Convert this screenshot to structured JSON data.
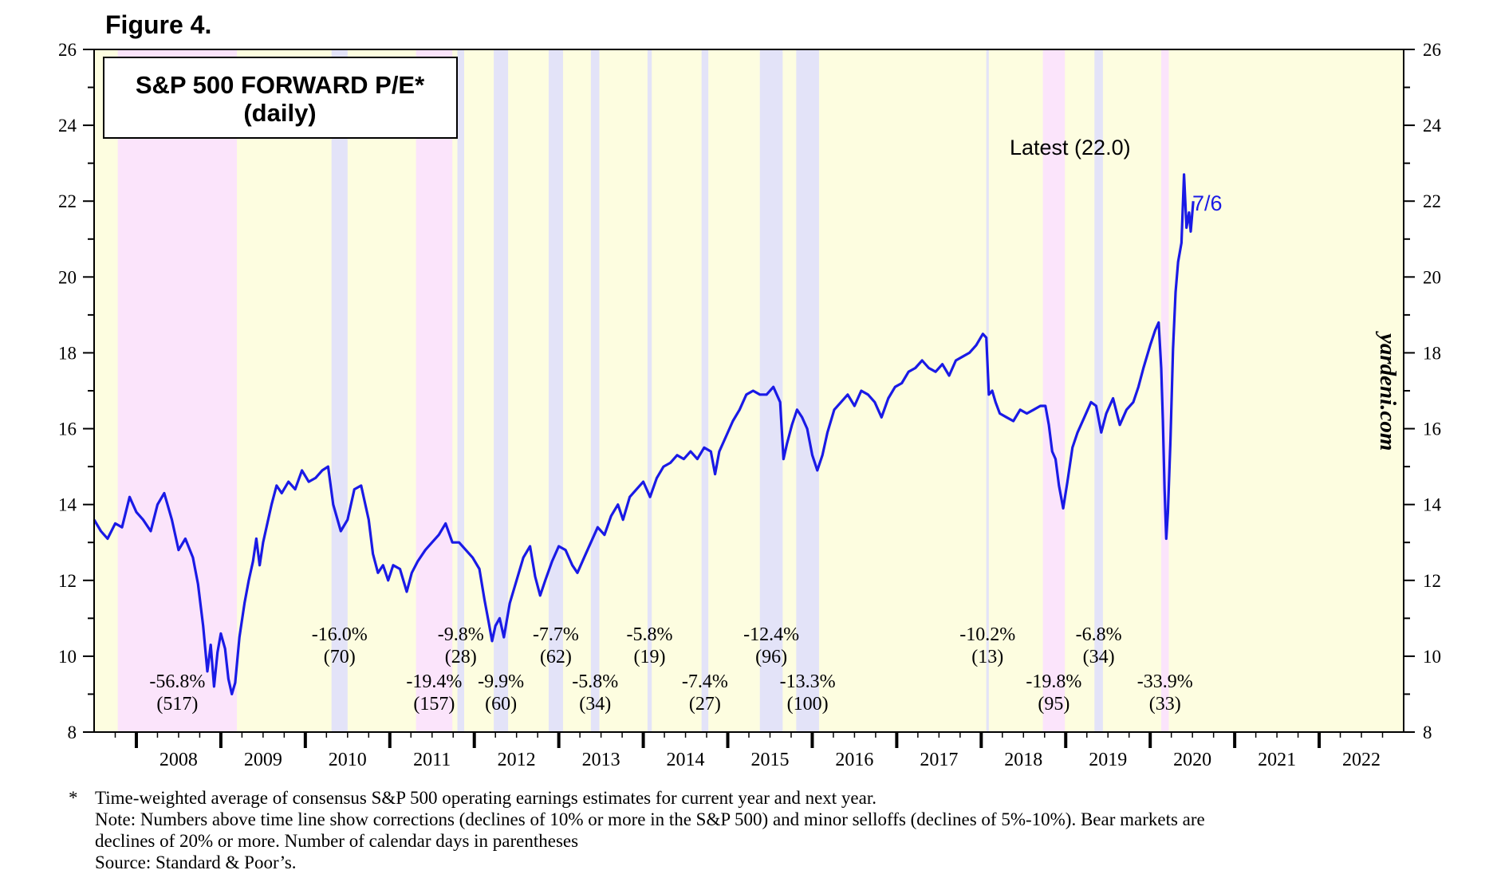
{
  "figure_label": "Figure 4.",
  "watermark": "yardeni.com",
  "chart_data": {
    "type": "line",
    "title": "S&P 500 FORWARD P/E*",
    "subtitle": "(daily)",
    "xlabel": "",
    "ylabel": "",
    "ylim": [
      8,
      26
    ],
    "xlim": [
      2007.5,
      2023.0
    ],
    "y_ticks": [
      8,
      10,
      12,
      14,
      16,
      18,
      20,
      22,
      24,
      26
    ],
    "x_tick_labels": [
      "2008",
      "2009",
      "2010",
      "2011",
      "2012",
      "2013",
      "2014",
      "2015",
      "2016",
      "2017",
      "2018",
      "2019",
      "2020",
      "2021",
      "2022"
    ],
    "series": [
      {
        "name": "S&P 500 Forward P/E",
        "color": "#1a1ae6",
        "points": [
          [
            2007.5,
            13.6
          ],
          [
            2007.58,
            13.3
          ],
          [
            2007.66,
            13.1
          ],
          [
            2007.75,
            13.5
          ],
          [
            2007.83,
            13.4
          ],
          [
            2007.92,
            14.2
          ],
          [
            2008.0,
            13.8
          ],
          [
            2008.08,
            13.6
          ],
          [
            2008.17,
            13.3
          ],
          [
            2008.25,
            14.0
          ],
          [
            2008.33,
            14.3
          ],
          [
            2008.42,
            13.6
          ],
          [
            2008.5,
            12.8
          ],
          [
            2008.58,
            13.1
          ],
          [
            2008.67,
            12.6
          ],
          [
            2008.73,
            11.9
          ],
          [
            2008.79,
            10.8
          ],
          [
            2008.84,
            9.6
          ],
          [
            2008.88,
            10.3
          ],
          [
            2008.92,
            9.2
          ],
          [
            2008.96,
            10.1
          ],
          [
            2009.0,
            10.6
          ],
          [
            2009.05,
            10.2
          ],
          [
            2009.09,
            9.4
          ],
          [
            2009.13,
            9.0
          ],
          [
            2009.17,
            9.3
          ],
          [
            2009.22,
            10.5
          ],
          [
            2009.28,
            11.4
          ],
          [
            2009.33,
            12.0
          ],
          [
            2009.38,
            12.5
          ],
          [
            2009.42,
            13.1
          ],
          [
            2009.46,
            12.4
          ],
          [
            2009.5,
            13.0
          ],
          [
            2009.55,
            13.5
          ],
          [
            2009.6,
            14.0
          ],
          [
            2009.66,
            14.5
          ],
          [
            2009.72,
            14.3
          ],
          [
            2009.8,
            14.6
          ],
          [
            2009.88,
            14.4
          ],
          [
            2009.96,
            14.9
          ],
          [
            2010.04,
            14.6
          ],
          [
            2010.12,
            14.7
          ],
          [
            2010.2,
            14.9
          ],
          [
            2010.27,
            15.0
          ],
          [
            2010.33,
            14.0
          ],
          [
            2010.42,
            13.3
          ],
          [
            2010.5,
            13.6
          ],
          [
            2010.58,
            14.4
          ],
          [
            2010.66,
            14.5
          ],
          [
            2010.75,
            13.6
          ],
          [
            2010.8,
            12.7
          ],
          [
            2010.86,
            12.2
          ],
          [
            2010.92,
            12.4
          ],
          [
            2010.98,
            12.0
          ],
          [
            2011.04,
            12.4
          ],
          [
            2011.12,
            12.3
          ],
          [
            2011.2,
            11.7
          ],
          [
            2011.26,
            12.2
          ],
          [
            2011.33,
            12.5
          ],
          [
            2011.42,
            12.8
          ],
          [
            2011.5,
            13.0
          ],
          [
            2011.58,
            13.2
          ],
          [
            2011.66,
            13.5
          ],
          [
            2011.74,
            13.0
          ],
          [
            2011.82,
            13.0
          ],
          [
            2011.9,
            12.8
          ],
          [
            2011.98,
            12.6
          ],
          [
            2012.06,
            12.3
          ],
          [
            2012.12,
            11.5
          ],
          [
            2012.17,
            10.9
          ],
          [
            2012.21,
            10.4
          ],
          [
            2012.25,
            10.8
          ],
          [
            2012.3,
            11.0
          ],
          [
            2012.35,
            10.5
          ],
          [
            2012.42,
            11.4
          ],
          [
            2012.5,
            12.0
          ],
          [
            2012.58,
            12.6
          ],
          [
            2012.66,
            12.9
          ],
          [
            2012.72,
            12.1
          ],
          [
            2012.78,
            11.6
          ],
          [
            2012.84,
            12.0
          ],
          [
            2012.92,
            12.5
          ],
          [
            2013.0,
            12.9
          ],
          [
            2013.08,
            12.8
          ],
          [
            2013.16,
            12.4
          ],
          [
            2013.22,
            12.2
          ],
          [
            2013.3,
            12.6
          ],
          [
            2013.38,
            13.0
          ],
          [
            2013.46,
            13.4
          ],
          [
            2013.54,
            13.2
          ],
          [
            2013.62,
            13.7
          ],
          [
            2013.7,
            14.0
          ],
          [
            2013.76,
            13.6
          ],
          [
            2013.84,
            14.2
          ],
          [
            2013.92,
            14.4
          ],
          [
            2014.0,
            14.6
          ],
          [
            2014.08,
            14.2
          ],
          [
            2014.16,
            14.7
          ],
          [
            2014.24,
            15.0
          ],
          [
            2014.32,
            15.1
          ],
          [
            2014.4,
            15.3
          ],
          [
            2014.48,
            15.2
          ],
          [
            2014.56,
            15.4
          ],
          [
            2014.64,
            15.2
          ],
          [
            2014.72,
            15.5
          ],
          [
            2014.8,
            15.4
          ],
          [
            2014.85,
            14.8
          ],
          [
            2014.9,
            15.4
          ],
          [
            2014.98,
            15.8
          ],
          [
            2015.06,
            16.2
          ],
          [
            2015.14,
            16.5
          ],
          [
            2015.22,
            16.9
          ],
          [
            2015.3,
            17.0
          ],
          [
            2015.38,
            16.9
          ],
          [
            2015.46,
            16.9
          ],
          [
            2015.54,
            17.1
          ],
          [
            2015.62,
            16.7
          ],
          [
            2015.66,
            15.2
          ],
          [
            2015.7,
            15.6
          ],
          [
            2015.76,
            16.1
          ],
          [
            2015.82,
            16.5
          ],
          [
            2015.88,
            16.3
          ],
          [
            2015.94,
            16.0
          ],
          [
            2016.0,
            15.3
          ],
          [
            2016.06,
            14.9
          ],
          [
            2016.12,
            15.3
          ],
          [
            2016.18,
            15.9
          ],
          [
            2016.26,
            16.5
          ],
          [
            2016.34,
            16.7
          ],
          [
            2016.42,
            16.9
          ],
          [
            2016.5,
            16.6
          ],
          [
            2016.58,
            17.0
          ],
          [
            2016.66,
            16.9
          ],
          [
            2016.74,
            16.7
          ],
          [
            2016.82,
            16.3
          ],
          [
            2016.9,
            16.8
          ],
          [
            2016.98,
            17.1
          ],
          [
            2017.06,
            17.2
          ],
          [
            2017.14,
            17.5
          ],
          [
            2017.22,
            17.6
          ],
          [
            2017.3,
            17.8
          ],
          [
            2017.38,
            17.6
          ],
          [
            2017.46,
            17.5
          ],
          [
            2017.54,
            17.7
          ],
          [
            2017.62,
            17.4
          ],
          [
            2017.7,
            17.8
          ],
          [
            2017.78,
            17.9
          ],
          [
            2017.86,
            18.0
          ],
          [
            2017.94,
            18.2
          ],
          [
            2018.02,
            18.5
          ],
          [
            2018.06,
            18.4
          ],
          [
            2018.09,
            16.9
          ],
          [
            2018.13,
            17.0
          ],
          [
            2018.17,
            16.7
          ],
          [
            2018.22,
            16.4
          ],
          [
            2018.3,
            16.3
          ],
          [
            2018.38,
            16.2
          ],
          [
            2018.46,
            16.5
          ],
          [
            2018.54,
            16.4
          ],
          [
            2018.62,
            16.5
          ],
          [
            2018.7,
            16.6
          ],
          [
            2018.76,
            16.6
          ],
          [
            2018.8,
            16.1
          ],
          [
            2018.84,
            15.4
          ],
          [
            2018.88,
            15.2
          ],
          [
            2018.92,
            14.5
          ],
          [
            2018.97,
            13.9
          ],
          [
            2019.02,
            14.6
          ],
          [
            2019.08,
            15.5
          ],
          [
            2019.14,
            15.9
          ],
          [
            2019.22,
            16.3
          ],
          [
            2019.3,
            16.7
          ],
          [
            2019.36,
            16.6
          ],
          [
            2019.42,
            15.9
          ],
          [
            2019.48,
            16.4
          ],
          [
            2019.56,
            16.8
          ],
          [
            2019.64,
            16.1
          ],
          [
            2019.72,
            16.5
          ],
          [
            2019.8,
            16.7
          ],
          [
            2019.86,
            17.1
          ],
          [
            2019.92,
            17.6
          ],
          [
            2020.0,
            18.2
          ],
          [
            2020.06,
            18.6
          ],
          [
            2020.1,
            18.8
          ],
          [
            2020.13,
            17.6
          ],
          [
            2020.15,
            16.2
          ],
          [
            2020.17,
            14.4
          ],
          [
            2020.19,
            13.1
          ],
          [
            2020.21,
            13.8
          ],
          [
            2020.24,
            15.7
          ],
          [
            2020.27,
            18.1
          ],
          [
            2020.3,
            19.6
          ],
          [
            2020.33,
            20.4
          ],
          [
            2020.37,
            20.9
          ],
          [
            2020.4,
            22.7
          ],
          [
            2020.43,
            21.3
          ],
          [
            2020.46,
            21.7
          ],
          [
            2020.48,
            21.2
          ],
          [
            2020.51,
            22.0
          ]
        ]
      }
    ],
    "shaded_bands": [
      {
        "type": "bear market",
        "start": 2007.78,
        "end": 2009.19,
        "label": "-56.8%",
        "days": "(517)"
      },
      {
        "type": "correction",
        "start": 2010.31,
        "end": 2010.5,
        "label": "-16.0%",
        "days": "(70)"
      },
      {
        "type": "bear market",
        "start": 2011.31,
        "end": 2011.74,
        "label": "-19.4%",
        "days": "(157)"
      },
      {
        "type": "minor selloff",
        "start": 2011.8,
        "end": 2011.88,
        "label": "-9.8%",
        "days": "(28)"
      },
      {
        "type": "minor selloff",
        "start": 2012.23,
        "end": 2012.4,
        "label": "-9.9%",
        "days": "(60)"
      },
      {
        "type": "minor selloff",
        "start": 2012.88,
        "end": 2013.05,
        "label": "-7.7%",
        "days": "(62)"
      },
      {
        "type": "minor selloff",
        "start": 2013.38,
        "end": 2013.48,
        "label": "-5.8%",
        "days": "(34)"
      },
      {
        "type": "minor selloff",
        "start": 2014.05,
        "end": 2014.1,
        "label": "-5.8%",
        "days": "(19)"
      },
      {
        "type": "minor selloff",
        "start": 2014.69,
        "end": 2014.77,
        "label": "-7.4%",
        "days": "(27)"
      },
      {
        "type": "correction",
        "start": 2015.38,
        "end": 2015.65,
        "label": "-12.4%",
        "days": "(96)"
      },
      {
        "type": "correction",
        "start": 2015.81,
        "end": 2016.08,
        "label": "-13.3%",
        "days": "(100)"
      },
      {
        "type": "correction",
        "start": 2018.06,
        "end": 2018.09,
        "label": "-10.2%",
        "days": "(13)"
      },
      {
        "type": "bear market",
        "start": 2018.73,
        "end": 2018.99,
        "label": "-19.8%",
        "days": "(95)"
      },
      {
        "type": "minor selloff",
        "start": 2019.34,
        "end": 2019.44,
        "label": "-6.8%",
        "days": "(34)"
      },
      {
        "type": "bear market",
        "start": 2020.13,
        "end": 2020.22,
        "label": "-33.9%",
        "days": "(33)"
      }
    ],
    "annotations": {
      "latest": "Latest (22.0)",
      "latest_date": "7/6"
    }
  },
  "footnotes": {
    "star": "*",
    "line1": "Time-weighted average of consensus S&P 500 operating earnings estimates for current year and next year.",
    "line2": "Note: Numbers above time line show corrections (declines of 10% or more in the S&P 500) and minor selloffs (declines of 5%-10%). Bear markets are",
    "line3": "declines of 20% or more. Number of calendar days in parentheses",
    "line4": "Source: Standard & Poor’s."
  }
}
